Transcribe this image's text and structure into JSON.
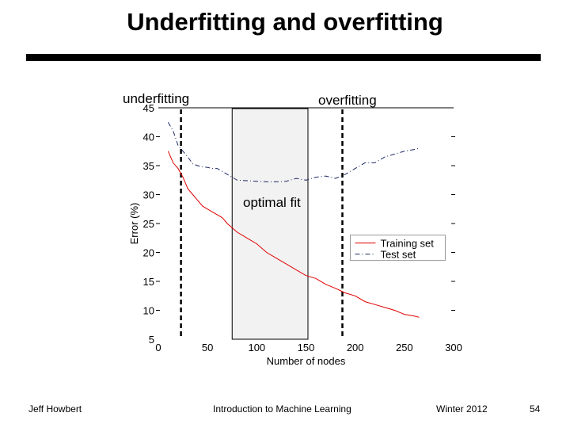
{
  "slide": {
    "title": "Underfitting and overfitting",
    "annotations": {
      "underfitting": "underfitting",
      "overfitting": "overfitting",
      "optimal": "optimal fit"
    },
    "footer": {
      "author": "Jeff Howbert",
      "course": "Introduction to Machine Learning",
      "term": "Winter 2012",
      "page": "54"
    }
  },
  "chart_data": {
    "type": "line",
    "xlabel": "Number of nodes",
    "ylabel": "Error (%)",
    "xlim": [
      0,
      300
    ],
    "ylim": [
      5,
      45
    ],
    "xticks": [
      0,
      50,
      100,
      150,
      200,
      250,
      300
    ],
    "yticks": [
      5,
      10,
      15,
      20,
      25,
      30,
      35,
      40,
      45
    ],
    "legend_position": "lower-right",
    "series": [
      {
        "name": "Training set",
        "color": "#e00000",
        "style": "solid",
        "points": [
          [
            10,
            37.5
          ],
          [
            15,
            35.5
          ],
          [
            20,
            34.5
          ],
          [
            25,
            33
          ],
          [
            30,
            31
          ],
          [
            35,
            30
          ],
          [
            40,
            29
          ],
          [
            45,
            28
          ],
          [
            50,
            27.5
          ],
          [
            60,
            26.5
          ],
          [
            65,
            26
          ],
          [
            70,
            25
          ],
          [
            80,
            23.5
          ],
          [
            90,
            22.5
          ],
          [
            100,
            21.5
          ],
          [
            110,
            20
          ],
          [
            120,
            19
          ],
          [
            130,
            18
          ],
          [
            140,
            17
          ],
          [
            150,
            16
          ],
          [
            160,
            15.5
          ],
          [
            170,
            14.5
          ],
          [
            180,
            13.8
          ],
          [
            190,
            13
          ],
          [
            200,
            12.5
          ],
          [
            210,
            11.5
          ],
          [
            220,
            11
          ],
          [
            230,
            10.5
          ],
          [
            240,
            10
          ],
          [
            250,
            9.3
          ],
          [
            260,
            9
          ],
          [
            265,
            8.8
          ]
        ]
      },
      {
        "name": "Test set",
        "color": "#1f2a66",
        "style": "dashdot",
        "points": [
          [
            10,
            42.5
          ],
          [
            15,
            41
          ],
          [
            20,
            38.5
          ],
          [
            25,
            37.5
          ],
          [
            30,
            36.5
          ],
          [
            35,
            35.3
          ],
          [
            40,
            35
          ],
          [
            45,
            34.8
          ],
          [
            50,
            34.7
          ],
          [
            55,
            34.5
          ],
          [
            60,
            34.5
          ],
          [
            65,
            34
          ],
          [
            70,
            33.5
          ],
          [
            80,
            32.5
          ],
          [
            90,
            32.4
          ],
          [
            100,
            32.3
          ],
          [
            110,
            32.2
          ],
          [
            120,
            32.2
          ],
          [
            130,
            32.3
          ],
          [
            140,
            32.8
          ],
          [
            150,
            32.5
          ],
          [
            160,
            33
          ],
          [
            170,
            33.2
          ],
          [
            180,
            32.8
          ],
          [
            190,
            33.5
          ],
          [
            200,
            34.5
          ],
          [
            210,
            35.5
          ],
          [
            220,
            35.5
          ],
          [
            230,
            36.5
          ],
          [
            240,
            37
          ],
          [
            250,
            37.5
          ],
          [
            260,
            37.8
          ],
          [
            265,
            38
          ]
        ]
      }
    ],
    "vertical_lines": [
      23,
      187
    ],
    "optimal_region": [
      75,
      152
    ]
  }
}
